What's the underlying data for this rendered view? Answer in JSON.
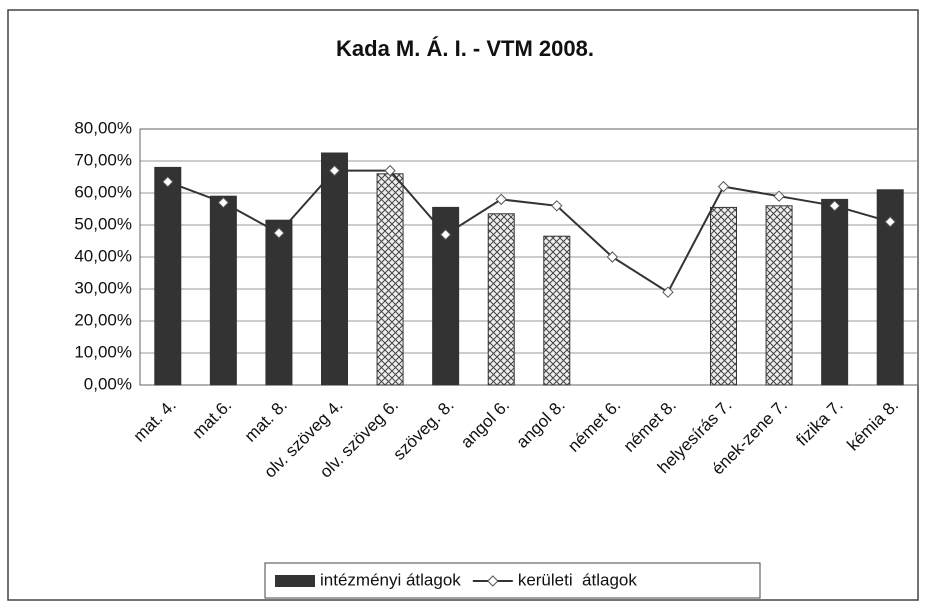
{
  "chart_data": {
    "type": "bar_line",
    "title": "Kada M. Á. I. - VTM 2008.",
    "categories": [
      "mat. 4.",
      "mat.6.",
      "mat. 8.",
      "olv. szöveg 4.",
      "olv. szöveg 6.",
      "szöveg. 8.",
      "angol 6.",
      "angol 8.",
      "német 6.",
      "német 8.",
      "helyesírás 7.",
      "ének-zene 7.",
      "fizika 7.",
      "kémia 8."
    ],
    "series": [
      {
        "name": "intézményi átlagok",
        "type": "bar",
        "color": "#333333",
        "values": [
          68,
          59,
          51.5,
          72.5,
          66,
          55.5,
          53.5,
          46.5,
          null,
          null,
          55.5,
          56,
          58,
          61
        ],
        "patterns": [
          "solid",
          "solid",
          "solid",
          "solid",
          "hatch",
          "solid",
          "hatch",
          "hatch",
          null,
          null,
          "hatch",
          "hatch",
          "solid",
          "solid"
        ]
      },
      {
        "name": "kerületi  átlagok",
        "type": "line",
        "color": "#333333",
        "values": [
          63.5,
          57,
          47.5,
          67,
          67,
          47,
          58,
          56,
          40,
          29,
          62,
          59,
          56,
          51
        ]
      }
    ],
    "ylim": [
      0,
      80
    ],
    "yticks": [
      {
        "value": 0,
        "label": "0,00%"
      },
      {
        "value": 10,
        "label": "10,00%"
      },
      {
        "value": 20,
        "label": "20,00%"
      },
      {
        "value": 30,
        "label": "30,00%"
      },
      {
        "value": 40,
        "label": "40,00%"
      },
      {
        "value": 50,
        "label": "50,00%"
      },
      {
        "value": 60,
        "label": "60,00%"
      },
      {
        "value": 70,
        "label": "70,00%"
      },
      {
        "value": 80,
        "label": "80,00%"
      }
    ],
    "grid": true,
    "legend": "bottom"
  }
}
